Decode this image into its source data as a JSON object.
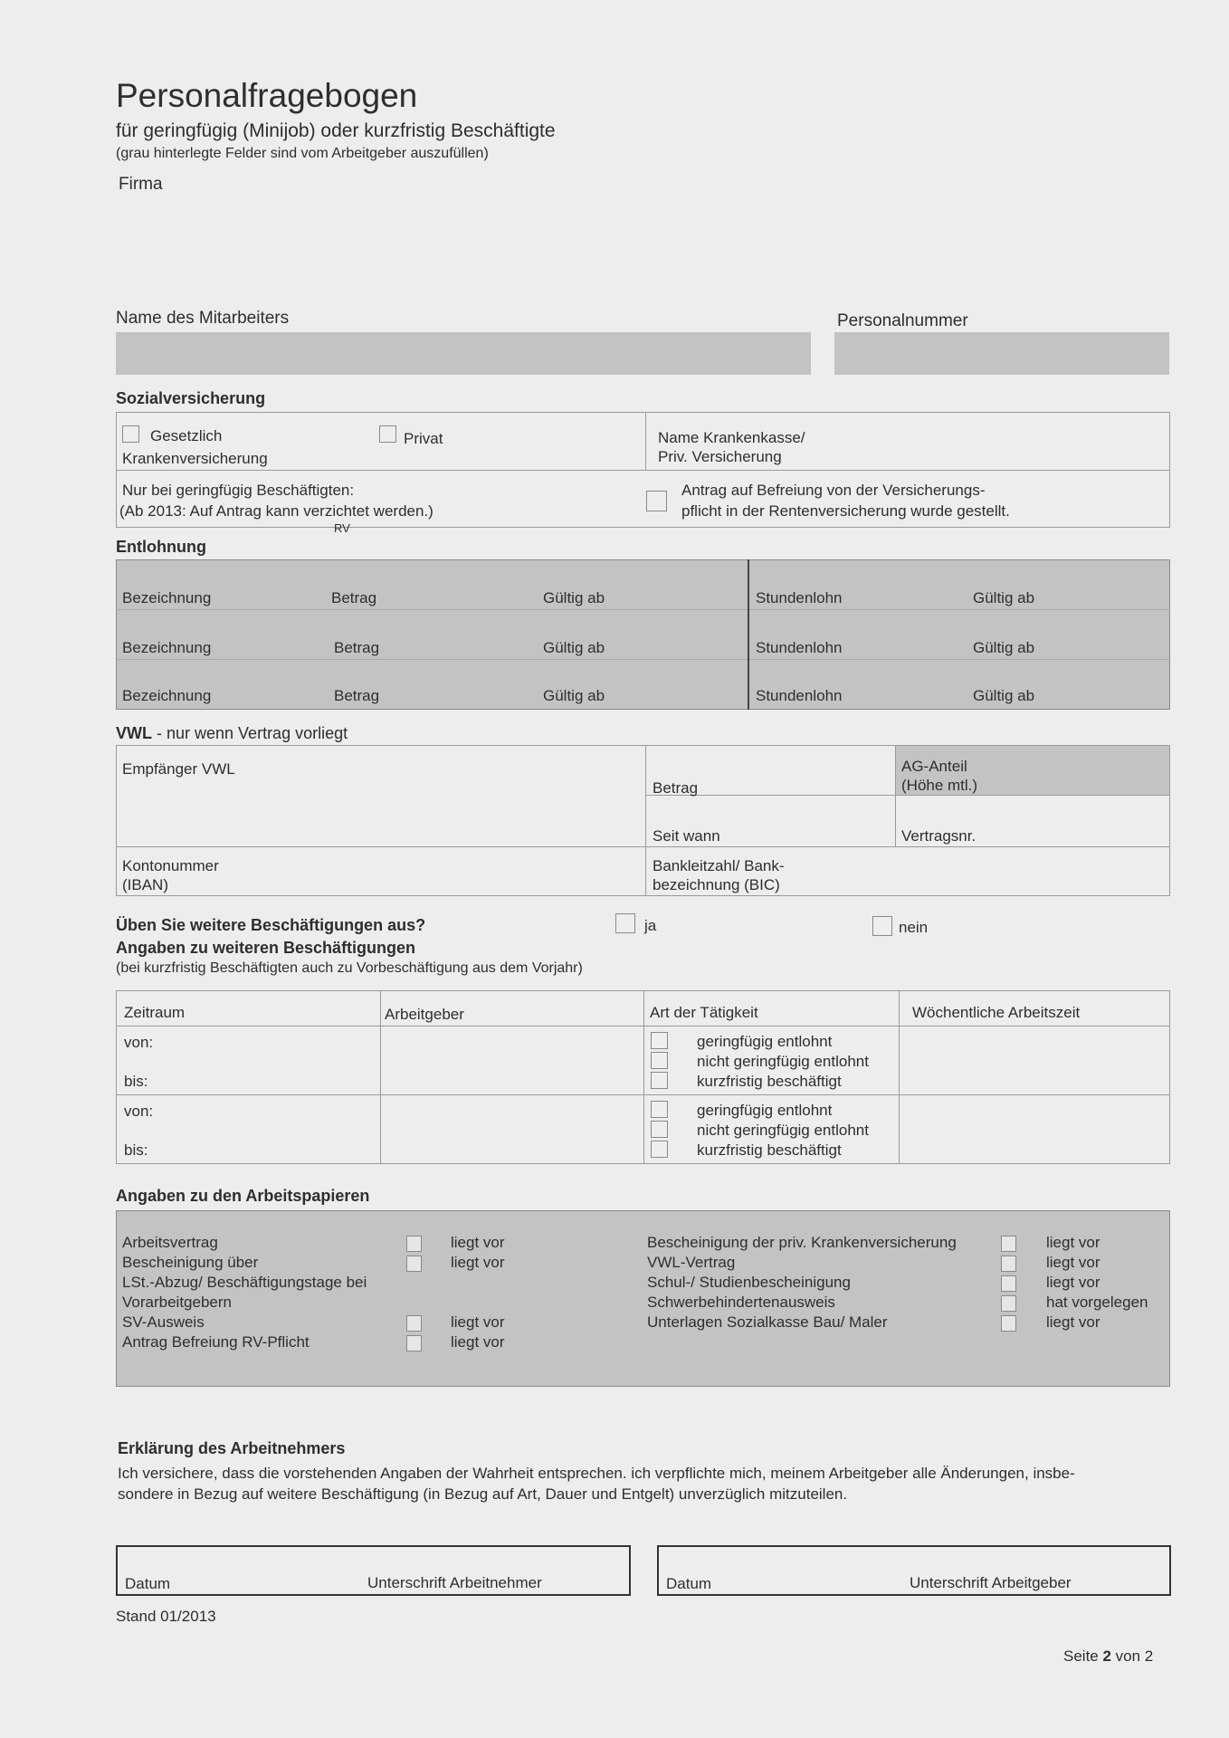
{
  "header": {
    "title": "Personalfragebogen",
    "subtitle": "für geringfügig (Minijob) oder kurzfristig Beschäftigte",
    "note": "(grau hinterlegte Felder sind vom Arbeitgeber auszufüllen)",
    "firma": "Firma"
  },
  "employee": {
    "name_label": "Name des Mitarbeiters",
    "number_label": "Personalnummer"
  },
  "sozial": {
    "heading": "Sozialversicherung",
    "gesetzlich": "Gesetzlich",
    "kranken": "Krankenversicherung",
    "privat": "Privat",
    "kasse1": "Name Krankenkasse/",
    "kasse2": "Priv. Versicherung",
    "nur": "Nur bei geringfügig Beschäftigten:",
    "ab": "(Ab 2013: Auf Antrag kann verzichtet werden.)",
    "rv": "RV",
    "antrag1": "Antrag auf Befreiung von der Versicherungs-",
    "antrag2": "pflicht in der Rentenversicherung wurde gestellt."
  },
  "entlohnung": {
    "heading": "Entlohnung",
    "rows": [
      {
        "bez": "Bezeichnung",
        "betrag": "Betrag",
        "gueltig": "Gültig ab",
        "stunden": "Stundenlohn",
        "gueltig2": "Gültig ab"
      },
      {
        "bez": "Bezeichnung",
        "betrag": "Betrag",
        "gueltig": "Gültig ab",
        "stunden": "Stundenlohn",
        "gueltig2": "Gültig ab"
      },
      {
        "bez": "Bezeichnung",
        "betrag": "Betrag",
        "gueltig": "Gültig ab",
        "stunden": "Stundenlohn",
        "gueltig2": "Gültig ab"
      }
    ]
  },
  "vwl": {
    "heading_bold": "VWL",
    "heading_rest": " - nur wenn Vertrag vorliegt",
    "empfaenger": "Empfänger VWL",
    "betrag": "Betrag",
    "ag1": "AG-Anteil",
    "ag2": "(Höhe mtl.)",
    "seit": "Seit wann",
    "vertragsnr": "Vertragsnr.",
    "konto1": "Kontonummer",
    "konto2": "(IBAN)",
    "blz1": "Bankleitzahl/ Bank-",
    "blz2": "bezeichnung (BIC)"
  },
  "weitere": {
    "question": "Üben Sie weitere Beschäftigungen aus?",
    "ja": "ja",
    "nein": "nein",
    "heading": "Angaben zu weiteren Beschäftigungen",
    "note": "(bei kurzfristig Beschäftigten auch zu Vorbeschäftigung aus dem Vorjahr)",
    "columns": [
      "Zeitraum",
      "Arbeitgeber",
      "Art der Tätigkeit",
      "Wöchentliche Arbeitszeit"
    ],
    "von": "von:",
    "bis": "bis:",
    "options": [
      "geringfügig entlohnt",
      "nicht geringfügig entlohnt",
      "kurzfristig beschäftigt"
    ]
  },
  "papiere": {
    "heading": "Angaben zu den Arbeitspapieren",
    "left": [
      {
        "label": "Arbeitsvertrag",
        "status": "liegt vor"
      },
      {
        "label": "Bescheinigung über",
        "status": "liegt vor"
      },
      {
        "label": "LSt.-Abzug/ Beschäftigungstage bei",
        "status": ""
      },
      {
        "label": "Vorarbeitgebern",
        "status": ""
      },
      {
        "label": "SV-Ausweis",
        "status": "liegt vor"
      },
      {
        "label": "Antrag Befreiung RV-Pflicht",
        "status": "liegt vor"
      }
    ],
    "right": [
      {
        "label": "Bescheinigung der priv. Krankenversicherung",
        "status": "liegt vor"
      },
      {
        "label": "VWL-Vertrag",
        "status": "liegt vor"
      },
      {
        "label": "Schul-/ Studienbescheinigung",
        "status": "liegt vor"
      },
      {
        "label": "Schwerbehindertenausweis",
        "status": "hat vorgelegen"
      },
      {
        "label": "Unterlagen Sozialkasse Bau/ Maler",
        "status": "liegt vor"
      }
    ]
  },
  "erklaerung": {
    "heading": "Erklärung des Arbeitnehmers",
    "line1": "Ich versichere, dass die vorstehenden Angaben der Wahrheit entsprechen. ich verpflichte mich, meinem Arbeitgeber alle Änderungen, insbe-",
    "line2": "sondere in Bezug auf weitere Beschäftigung (in Bezug auf Art, Dauer und Entgelt) unverzüglich mitzuteilen."
  },
  "signatures": {
    "datum": "Datum",
    "an": "Unterschrift Arbeitnehmer",
    "ag": "Unterschrift Arbeitgeber"
  },
  "footer": {
    "stand": "Stand 01/2013",
    "seite_pre": "Seite ",
    "seite_num": "2",
    "seite_post": " von 2"
  },
  "colors": {
    "background": "#ededed",
    "employer_field": "#c3c3c3"
  }
}
